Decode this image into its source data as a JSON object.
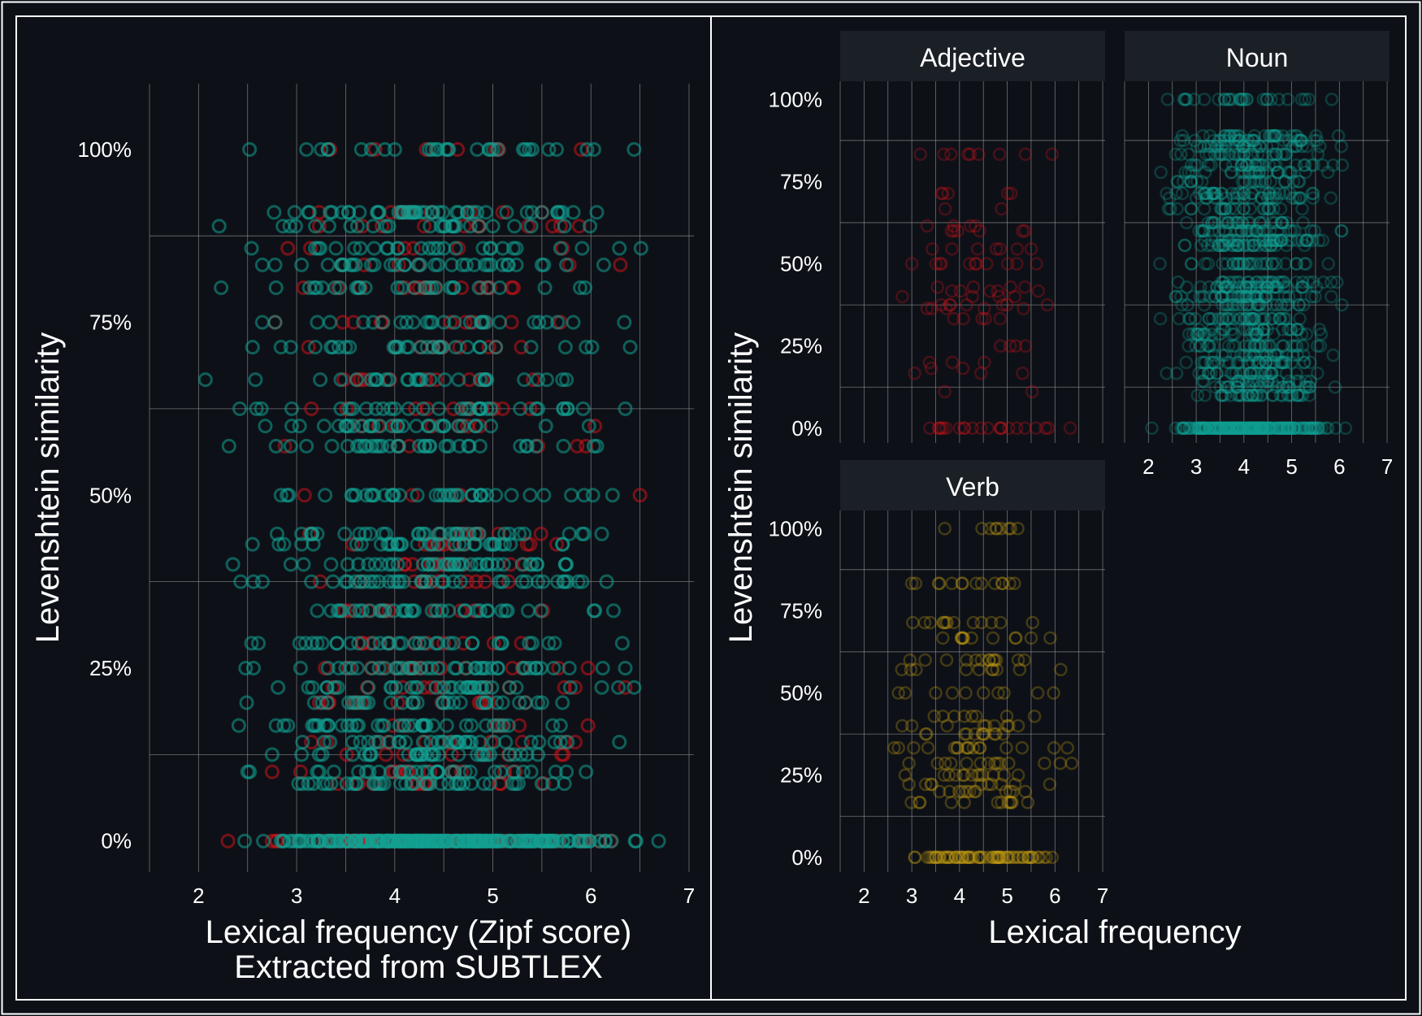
{
  "colors": {
    "background": "#0d1117",
    "strip": "#1b1f26",
    "grid": "#9a9a9a",
    "border": "#ffffff",
    "adjective": "#d0121a",
    "noun": "#12a091",
    "verb": "#c29a12"
  },
  "chart_data": [
    {
      "type": "scatter",
      "title": "",
      "xlabel": "Lexical frequency (Zipf score)",
      "xlabel2": "Extracted from SUBTLEX",
      "ylabel": "Levenshtein similarity",
      "xlim": [
        1.5,
        7.05
      ],
      "ylim": [
        -0.045,
        1.095
      ],
      "xticks": [
        "2",
        "3",
        "4",
        "5",
        "6",
        "7"
      ],
      "yticks": [
        "0%",
        "25%",
        "50%",
        "75%",
        "100%"
      ],
      "legend": "none",
      "y_levels": [
        0,
        0.083,
        0.1,
        0.125,
        0.143,
        0.167,
        0.2,
        0.222,
        0.25,
        0.286,
        0.333,
        0.375,
        0.4,
        0.429,
        0.444,
        0.5,
        0.571,
        0.6,
        0.625,
        0.667,
        0.714,
        0.75,
        0.8,
        0.833,
        0.857,
        0.889,
        0.909,
        1.0
      ],
      "series": [
        {
          "name": "Adjective",
          "x_range": [
            1.9,
            6.6
          ],
          "color": "adjective",
          "n": 330
        },
        {
          "name": "Noun",
          "x_range": [
            1.65,
            6.8
          ],
          "color": "noun",
          "n": 1000
        },
        {
          "name": "Verb",
          "x_range": [
            2.0,
            6.3
          ],
          "color": "noun",
          "n": 180
        }
      ]
    },
    {
      "type": "scatter",
      "facets": [
        {
          "label": "Adjective",
          "color": "adjective",
          "x_range": [
            1.8,
            6.5
          ],
          "y_levels": [
            0,
            0.111,
            0.167,
            0.182,
            0.2,
            0.25,
            0.333,
            0.364,
            0.375,
            0.4,
            0.417,
            0.429,
            0.5,
            0.545,
            0.6,
            0.615,
            0.667,
            0.714,
            0.833
          ],
          "n": 110
        },
        {
          "label": "Noun",
          "color": "noun",
          "x_range": [
            1.7,
            6.3
          ],
          "y_levels": [
            0,
            0.1,
            0.125,
            0.143,
            0.167,
            0.2,
            0.222,
            0.25,
            0.286,
            0.3,
            0.333,
            0.375,
            0.4,
            0.429,
            0.444,
            0.5,
            0.556,
            0.571,
            0.6,
            0.625,
            0.667,
            0.7,
            0.714,
            0.75,
            0.778,
            0.8,
            0.833,
            0.857,
            0.875,
            0.889,
            1.0
          ],
          "n": 1100
        },
        {
          "label": "Verb",
          "color": "verb",
          "x_range": [
            2.0,
            6.5
          ],
          "y_levels": [
            0,
            0.167,
            0.2,
            0.222,
            0.25,
            0.286,
            0.333,
            0.375,
            0.4,
            0.429,
            0.5,
            0.571,
            0.6,
            0.667,
            0.714,
            0.833,
            1.0
          ],
          "n": 260
        }
      ],
      "xlabel": "Lexical frequency",
      "ylabel": "Levenshtein similarity",
      "xlim": [
        1.5,
        7.05
      ],
      "ylim": [
        -0.045,
        1.055
      ],
      "xticks": [
        "2",
        "3",
        "4",
        "5",
        "6",
        "7"
      ],
      "yticks": [
        "0%",
        "25%",
        "50%",
        "75%",
        "100%"
      ],
      "legend": "none"
    }
  ]
}
